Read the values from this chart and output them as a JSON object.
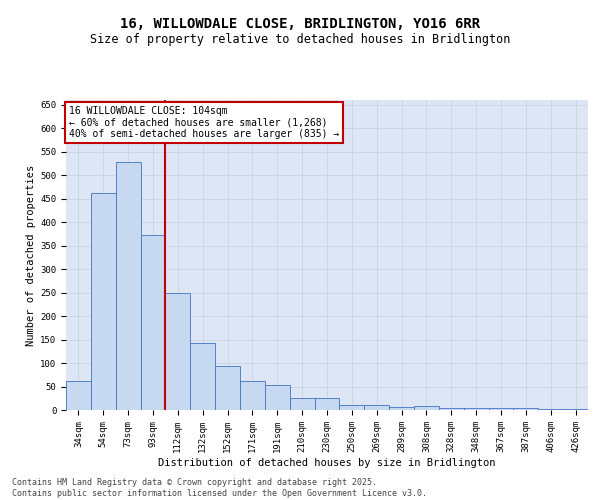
{
  "title": "16, WILLOWDALE CLOSE, BRIDLINGTON, YO16 6RR",
  "subtitle": "Size of property relative to detached houses in Bridlington",
  "xlabel": "Distribution of detached houses by size in Bridlington",
  "ylabel": "Number of detached properties",
  "categories": [
    "34sqm",
    "54sqm",
    "73sqm",
    "93sqm",
    "112sqm",
    "132sqm",
    "152sqm",
    "171sqm",
    "191sqm",
    "210sqm",
    "230sqm",
    "250sqm",
    "269sqm",
    "289sqm",
    "308sqm",
    "328sqm",
    "348sqm",
    "367sqm",
    "387sqm",
    "406sqm",
    "426sqm"
  ],
  "values": [
    62,
    463,
    528,
    372,
    250,
    142,
    93,
    62,
    53,
    25,
    25,
    10,
    11,
    6,
    8,
    5,
    4,
    4,
    5,
    3,
    2
  ],
  "bar_color": "#c6d9f0",
  "bar_edge_color": "#4472c4",
  "vline_x_index": 3,
  "vline_color": "#c00000",
  "annotation_text": "16 WILLOWDALE CLOSE: 104sqm\n← 60% of detached houses are smaller (1,268)\n40% of semi-detached houses are larger (835) →",
  "annotation_box_color": "#ffffff",
  "annotation_box_edge": "#c00000",
  "ylim": [
    0,
    660
  ],
  "yticks": [
    0,
    50,
    100,
    150,
    200,
    250,
    300,
    350,
    400,
    450,
    500,
    550,
    600,
    650
  ],
  "grid_color": "#ccd6e8",
  "background_color": "#dce6f5",
  "footer": "Contains HM Land Registry data © Crown copyright and database right 2025.\nContains public sector information licensed under the Open Government Licence v3.0.",
  "title_fontsize": 10,
  "subtitle_fontsize": 8.5,
  "axis_label_fontsize": 7.5,
  "tick_fontsize": 6.5,
  "annotation_fontsize": 7,
  "footer_fontsize": 6
}
